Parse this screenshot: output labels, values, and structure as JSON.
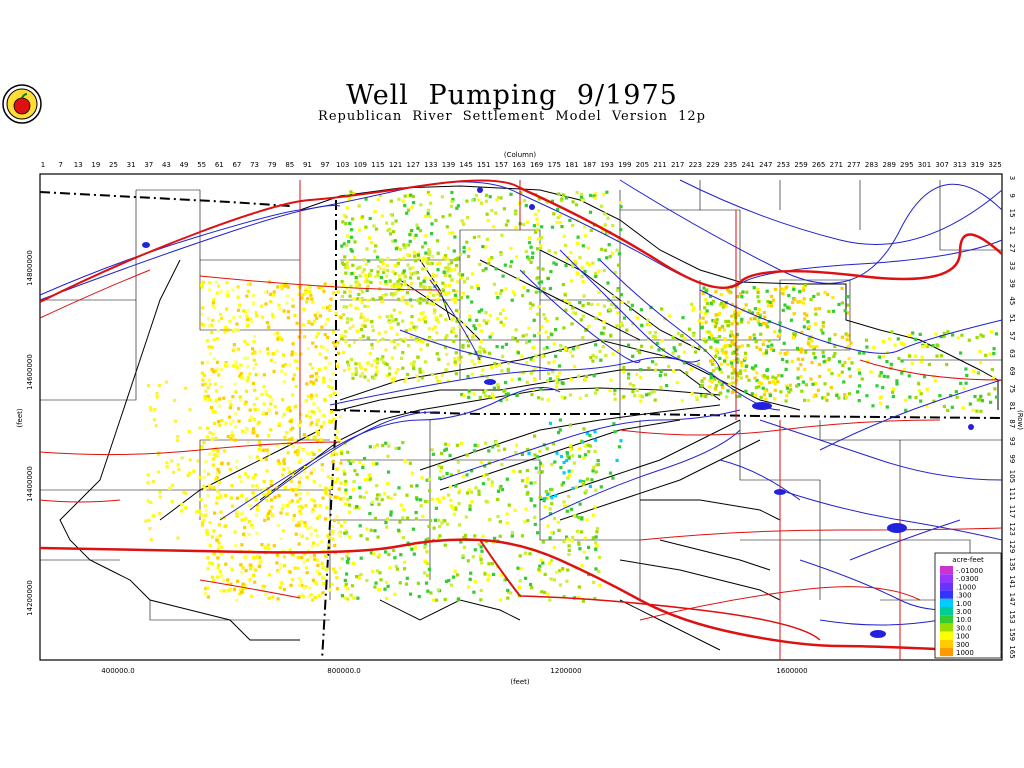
{
  "title": "Well Pumping   9/1975",
  "subtitle": "Republican River Settlement Model Version 12p",
  "axes": {
    "column_label": "(Column)",
    "row_label": "(Row)",
    "x_label": "(feet)",
    "y_label": "(feet)",
    "column_ticks": [
      "1",
      "7",
      "13",
      "19",
      "25",
      "31",
      "37",
      "43",
      "49",
      "55",
      "61",
      "67",
      "73",
      "79",
      "85",
      "91",
      "97",
      "103",
      "109",
      "115",
      "121",
      "127",
      "133",
      "139",
      "145",
      "151",
      "157",
      "163",
      "169",
      "175",
      "181",
      "187",
      "193",
      "199",
      "205",
      "211",
      "217",
      "223",
      "229",
      "235",
      "241",
      "247",
      "253",
      "259",
      "265",
      "271",
      "277",
      "283",
      "289",
      "295",
      "301",
      "307",
      "313",
      "319",
      "325"
    ],
    "row_ticks": [
      "3",
      "9",
      "15",
      "21",
      "27",
      "33",
      "39",
      "45",
      "51",
      "57",
      "63",
      "69",
      "75",
      "81",
      "87",
      "93",
      "99",
      "105",
      "111",
      "117",
      "123",
      "129",
      "135",
      "141",
      "147",
      "153",
      "159",
      "165"
    ],
    "x_ticks": [
      "400000.0",
      "800000.0",
      "1200000",
      "1600000"
    ],
    "y_ticks": [
      "14800000",
      "14600000",
      "14400000",
      "14200000"
    ]
  },
  "legend": {
    "title": "acre-feet",
    "items": [
      {
        "label": "-.01000",
        "color": "#cc33cc"
      },
      {
        "label": "-.0300",
        "color": "#9933ff"
      },
      {
        "label": ".1000",
        "color": "#6633ff"
      },
      {
        "label": ".300",
        "color": "#3333ff"
      },
      {
        "label": "1.00",
        "color": "#00ccff"
      },
      {
        "label": "3.00",
        "color": "#00cc99"
      },
      {
        "label": "10.0",
        "color": "#33cc33"
      },
      {
        "label": "30.0",
        "color": "#99dd00"
      },
      {
        "label": "100",
        "color": "#ffff00"
      },
      {
        "label": "300",
        "color": "#ffcc00"
      },
      {
        "label": "1000",
        "color": "#ff9900"
      }
    ]
  }
}
